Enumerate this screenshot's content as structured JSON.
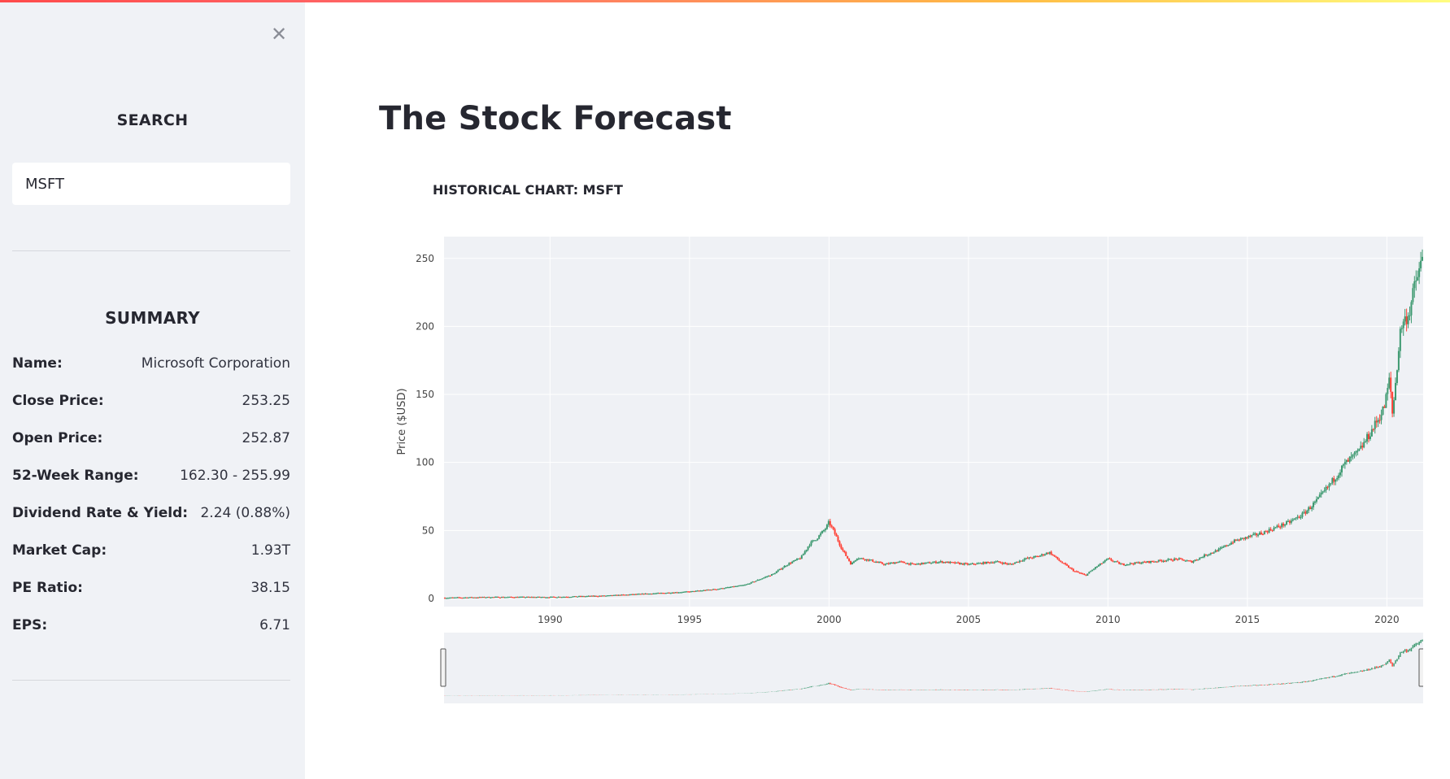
{
  "sidebar": {
    "close_icon": "close-icon",
    "search_header": "SEARCH",
    "search_value": "MSFT",
    "summary_header": "SUMMARY",
    "summary_rows": [
      {
        "label": "Name:",
        "value": "Microsoft Corporation"
      },
      {
        "label": "Close Price:",
        "value": "253.25"
      },
      {
        "label": "Open Price:",
        "value": "252.87"
      },
      {
        "label": "52-Week Range:",
        "value": "162.30 - 255.99"
      },
      {
        "label": "Dividend Rate & Yield:",
        "value": "2.24 (0.88%)"
      },
      {
        "label": "Market Cap:",
        "value": "1.93T"
      },
      {
        "label": "PE Ratio:",
        "value": "38.15"
      },
      {
        "label": "EPS:",
        "value": "6.71"
      }
    ]
  },
  "main": {
    "title": "The Stock Forecast",
    "chart_title": "HISTORICAL CHART: MSFT"
  },
  "colors": {
    "accent": "#ff4b4b",
    "sidebar_bg": "#f0f2f6",
    "plot_bg": "#eff1f5",
    "candle_up": "#3d9970",
    "candle_down": "#ff4136"
  },
  "chart_data": {
    "type": "line",
    "subtype": "candlestick",
    "title": "",
    "xlabel": "",
    "ylabel": "Price ($USD)",
    "xlim": [
      1986.2,
      2021.3
    ],
    "ylim": [
      -6,
      266
    ],
    "x_ticks": [
      1990,
      1995,
      2000,
      2005,
      2010,
      2015,
      2020
    ],
    "y_ticks": [
      0,
      50,
      100,
      150,
      200,
      250
    ],
    "grid": true,
    "legend": "none",
    "range_slider": true,
    "series": [
      {
        "values_x": [
          1986.2,
          1988,
          1990,
          1992,
          1994,
          1995,
          1996,
          1997,
          1997.5,
          1998,
          1998.5,
          1999,
          1999.3,
          1999.6,
          1999.9,
          2000.0,
          2000.2,
          2000.5,
          2000.8,
          2001.0,
          2001.5,
          2002.0,
          2002.5,
          2003.0,
          2003.5,
          2004.0,
          2005.0,
          2006.0,
          2006.5,
          2007.0,
          2007.5,
          2007.9,
          2008.3,
          2008.8,
          2009.2,
          2009.5,
          2010.0,
          2010.5,
          2011.0,
          2012.0,
          2012.5,
          2013.0,
          2013.5,
          2014.0,
          2014.5,
          2015.0,
          2015.5,
          2016.0,
          2016.5,
          2017.0,
          2017.5,
          2018.0,
          2018.5,
          2019.0,
          2019.5,
          2019.9,
          2020.1,
          2020.2,
          2020.5,
          2020.8,
          2021.0,
          2021.2,
          2021.3
        ],
        "values_y": [
          0.5,
          1,
          1,
          2,
          4,
          5,
          7,
          10,
          14,
          18,
          25,
          30,
          40,
          45,
          52,
          56,
          48,
          35,
          25,
          30,
          28,
          25,
          27,
          25,
          26,
          27,
          25,
          27,
          25,
          29,
          31,
          34,
          27,
          20,
          17,
          22,
          29,
          25,
          26,
          28,
          29,
          27,
          32,
          36,
          42,
          45,
          48,
          52,
          56,
          62,
          72,
          85,
          99,
          108,
          125,
          140,
          162,
          135,
          200,
          210,
          230,
          244,
          252
        ]
      }
    ]
  }
}
